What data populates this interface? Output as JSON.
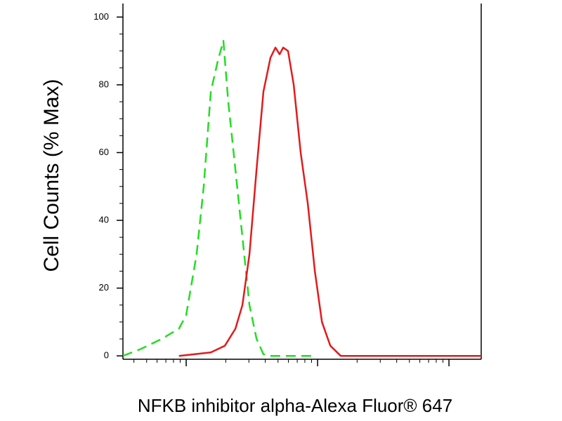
{
  "chart_data": {
    "type": "line",
    "y_label": "Cell Counts (% Max)",
    "x_label": "NFKB inhibitor alpha-Alexa Fluor® 647",
    "xscale": "log",
    "xlim": [
      3.3,
      1760
    ],
    "xticks": [
      10,
      100,
      1000
    ],
    "xtick_labels": false,
    "ylim": [
      -1,
      104
    ],
    "yticks": [
      0,
      20,
      40,
      60,
      80,
      100
    ],
    "series": [
      {
        "color": "#22dd22",
        "dash": true,
        "x": [
          3.3,
          4.5,
          6.5,
          8.8,
          10,
          12,
          13.6,
          15.4,
          17.4,
          19.2,
          20.9,
          23.7,
          26.8,
          30.3,
          34.3,
          38.7,
          43.8,
          95.3
        ],
        "values": [
          0,
          2,
          5,
          8,
          12,
          30,
          50,
          78,
          87,
          93,
          75,
          55,
          35,
          15,
          5,
          0.5,
          0,
          0
        ]
      },
      {
        "color": "#e31a1c",
        "dash": false,
        "x": [
          8.8,
          15.4,
          19.7,
          23.7,
          26.8,
          30.3,
          34.3,
          38.7,
          43.8,
          47.8,
          51.4,
          54.7,
          59.6,
          65.8,
          74.4,
          84.2,
          95.3,
          108,
          125,
          150,
          1760
        ],
        "values": [
          0,
          1,
          3,
          8,
          15,
          30,
          55,
          78,
          88,
          91,
          89,
          91,
          90,
          80,
          60,
          45,
          25,
          10,
          3,
          0,
          0
        ]
      }
    ]
  }
}
